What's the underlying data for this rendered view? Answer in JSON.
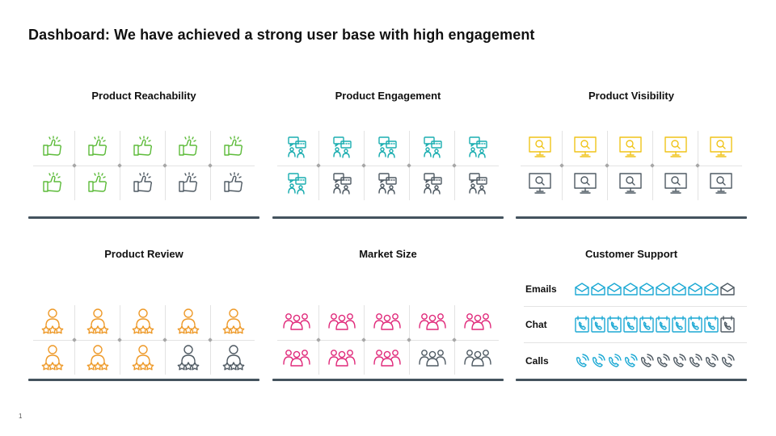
{
  "title": "Dashboard: We have achieved a strong user base with high engagement",
  "page_number": "1",
  "colors": {
    "green": "#5dbb3a",
    "teal": "#1aadb0",
    "yellow": "#f0c419",
    "orange": "#ee9a2a",
    "magenta": "#e0297a",
    "cyan": "#1ca9d4",
    "gray": "#4f5a63",
    "bar": "#44535e"
  },
  "panels": [
    {
      "key": "reach",
      "title": "Product Reachability",
      "icon": "thumbs-up-icon",
      "color": "green",
      "active": 7,
      "total": 10
    },
    {
      "key": "engage",
      "title": "Product Engagement",
      "icon": "chat-users-icon",
      "color": "teal",
      "active": 6,
      "total": 10
    },
    {
      "key": "visib",
      "title": "Product Visibility",
      "icon": "monitor-search-icon",
      "color": "yellow",
      "active": 5,
      "total": 10
    },
    {
      "key": "review",
      "title": "Product Review",
      "icon": "user-rating-icon",
      "color": "orange",
      "active": 8,
      "total": 10
    },
    {
      "key": "market",
      "title": "Market Size",
      "icon": "group-icon",
      "color": "magenta",
      "active": 8,
      "total": 10
    }
  ],
  "support": {
    "title": "Customer Support",
    "rows": [
      {
        "label": "Emails",
        "icon": "envelope-icon",
        "active": 9,
        "total": 10
      },
      {
        "label": "Chat",
        "icon": "chat-phone-icon",
        "active": 9,
        "total": 10
      },
      {
        "label": "Calls",
        "icon": "phone-call-icon",
        "active": 4,
        "total": 10
      }
    ]
  }
}
